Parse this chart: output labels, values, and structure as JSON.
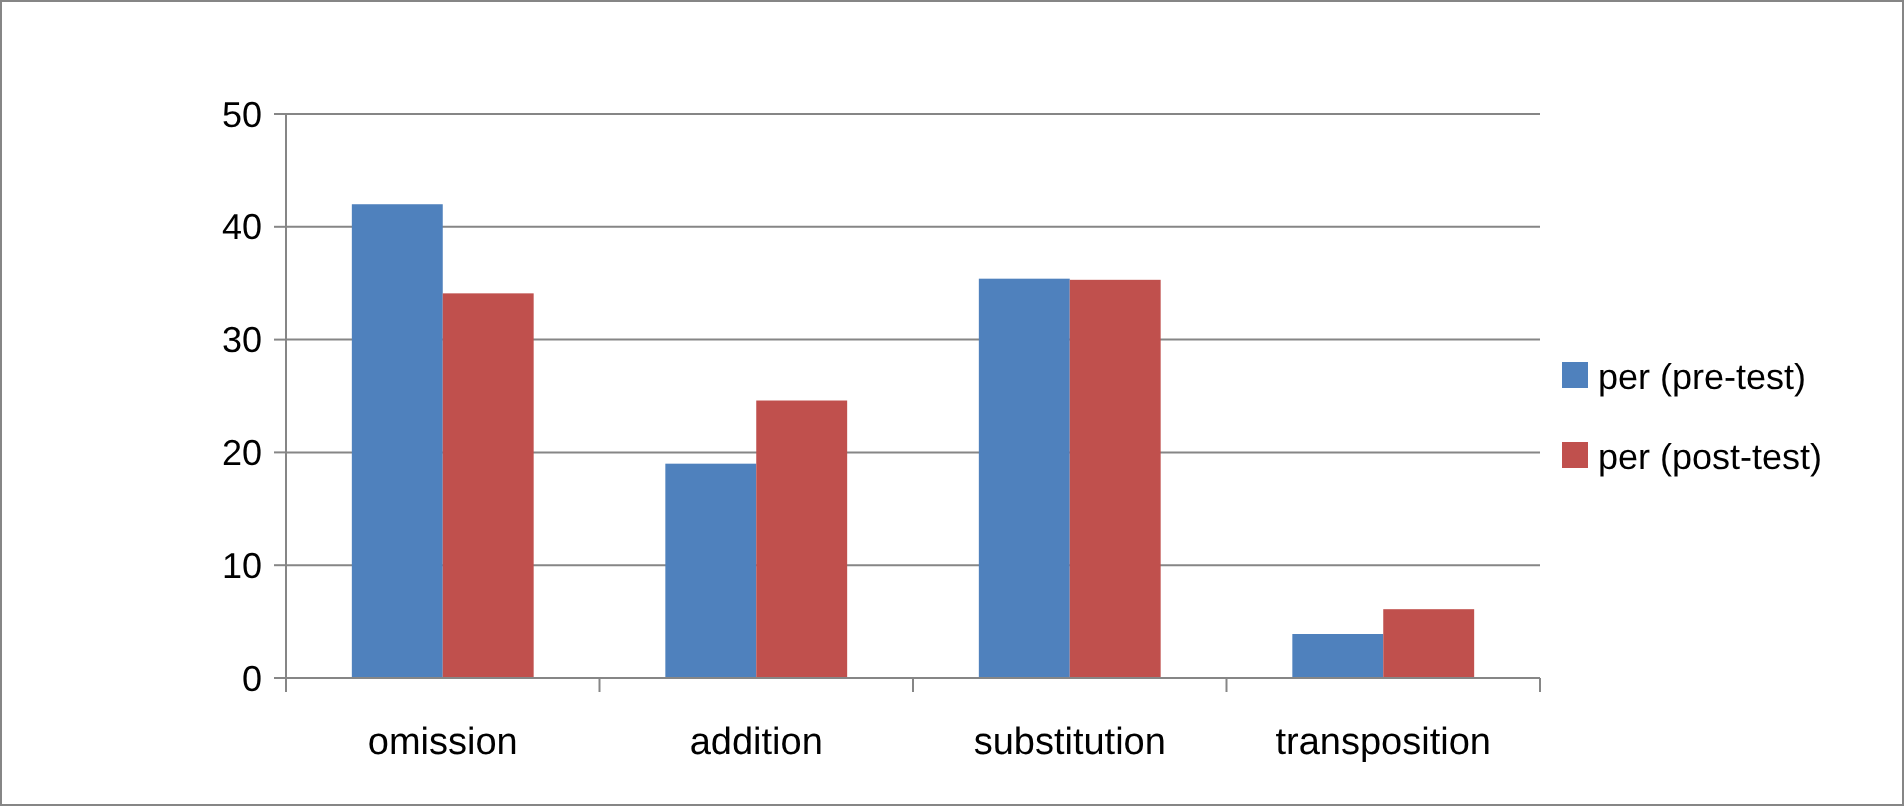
{
  "chart_data": {
    "type": "bar",
    "categories": [
      "omission",
      "addition",
      "substitution",
      "transposition"
    ],
    "series": [
      {
        "name": "per (pre-test)",
        "color": "#4f81bd",
        "values": [
          42,
          19,
          35.4,
          3.9
        ]
      },
      {
        "name": "per (post-test)",
        "color": "#c0504d",
        "values": [
          34.1,
          24.6,
          35.3,
          6.1
        ]
      }
    ],
    "ylim": [
      0,
      50
    ],
    "yticks": [
      0,
      10,
      20,
      30,
      40,
      50
    ],
    "grid": "y",
    "legend": "right"
  }
}
